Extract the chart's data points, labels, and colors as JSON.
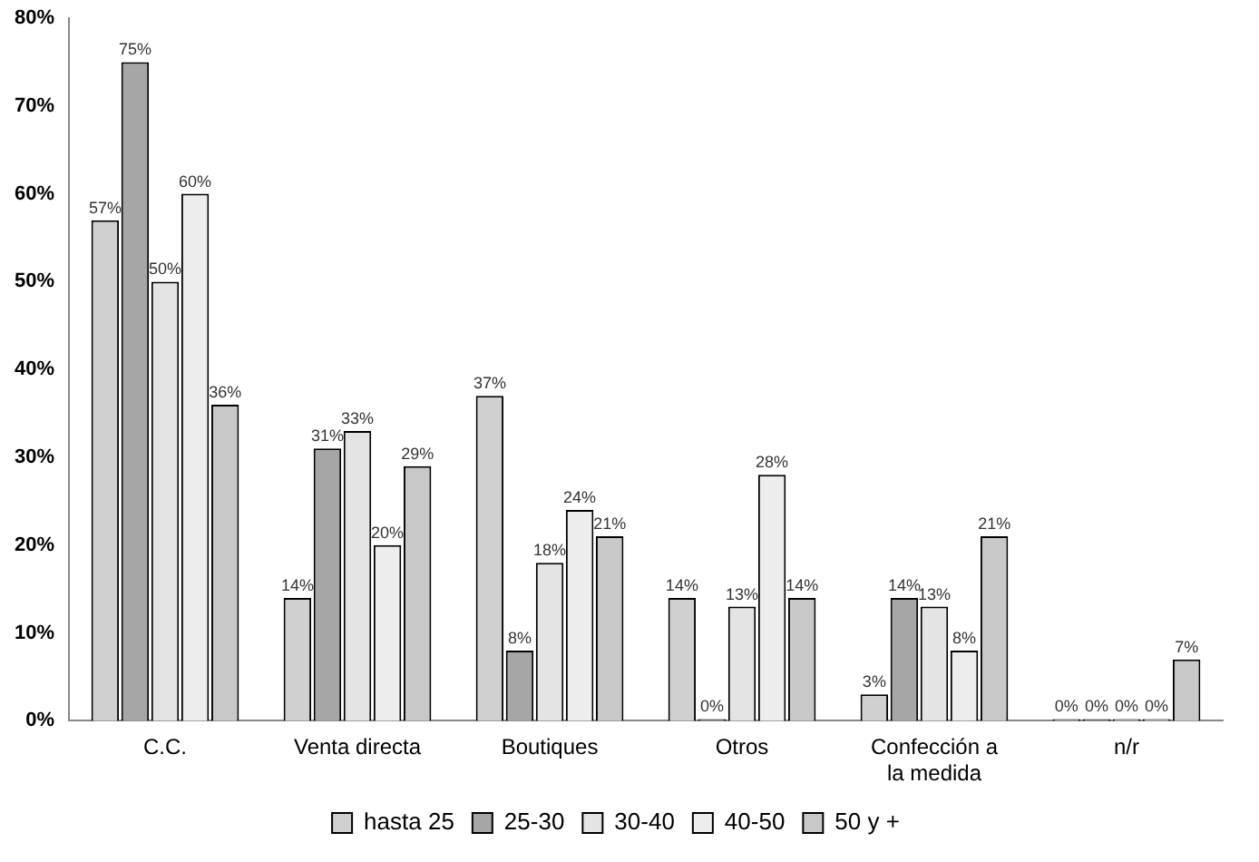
{
  "chart_data": {
    "type": "bar",
    "categories": [
      "C.C.",
      "Venta directa",
      "Boutiques",
      "Otros",
      "Confección a la medida",
      "n/r"
    ],
    "series": [
      {
        "name": "hasta 25",
        "color": "#d0d0d0",
        "values": [
          57,
          14,
          37,
          14,
          3,
          0
        ],
        "value_labels": [
          "57%",
          "14%",
          "37%",
          "14%",
          "3%",
          "0%"
        ]
      },
      {
        "name": "25-30",
        "color": "#a6a6a6",
        "values": [
          75,
          31,
          8,
          0,
          14,
          0
        ],
        "value_labels": [
          "75%",
          "31%",
          "8%",
          "0%",
          "14%",
          "0%"
        ]
      },
      {
        "name": "30-40",
        "color": "#e4e4e4",
        "values": [
          50,
          33,
          18,
          13,
          13,
          0
        ],
        "value_labels": [
          "50%",
          "33%",
          "18%",
          "13%",
          "13%",
          "0%"
        ]
      },
      {
        "name": "40-50",
        "color": "#ededed",
        "values": [
          60,
          20,
          24,
          28,
          8,
          0
        ],
        "value_labels": [
          "60%",
          "20%",
          "24%",
          "28%",
          "8%",
          "0%"
        ]
      },
      {
        "name": "50 y +",
        "color": "#c8c8c8",
        "values": [
          36,
          29,
          21,
          14,
          21,
          7
        ],
        "value_labels": [
          "36%",
          "29%",
          "21%",
          "14%",
          "21%",
          "7%"
        ]
      }
    ],
    "ylim": [
      0,
      80
    ],
    "yticks": [
      {
        "value": 0,
        "label": "0%"
      },
      {
        "value": 10,
        "label": "10%"
      },
      {
        "value": 20,
        "label": "20%"
      },
      {
        "value": 30,
        "label": "30%"
      },
      {
        "value": 40,
        "label": "40%"
      },
      {
        "value": 50,
        "label": "50%"
      },
      {
        "value": 60,
        "label": "60%"
      },
      {
        "value": 70,
        "label": "70%"
      },
      {
        "value": 80,
        "label": "80%"
      }
    ],
    "grid": false,
    "legend": "bottom"
  }
}
